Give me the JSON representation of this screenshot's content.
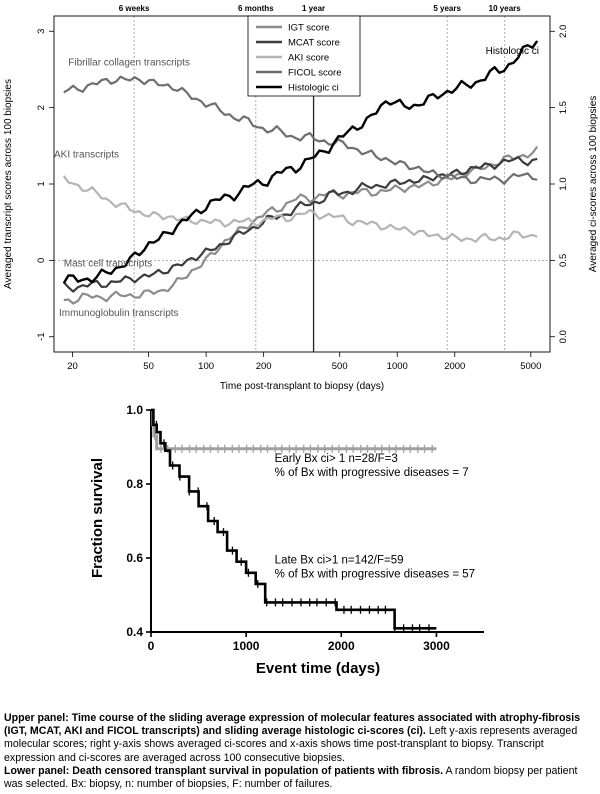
{
  "chart_data": [
    {
      "type": "line",
      "x_scale": "log",
      "xlabel": "Time post-transplant to biopsy (days)",
      "ylabel": "Averaged transcript scores across 100 biopsies",
      "y2label": "Averaged ci-scores across 100 biopsies",
      "x_ticks": [
        20,
        50,
        100,
        200,
        500,
        1000,
        2000,
        5000
      ],
      "y_ticks": [
        -1,
        0,
        1,
        2,
        3
      ],
      "y2_ticks": [
        "0.0",
        "0.5",
        "1.0",
        "1.5",
        "2.0"
      ],
      "xlim": [
        16,
        6300
      ],
      "ylim": [
        -1.2,
        3.2
      ],
      "y2lim": [
        -0.1,
        2.1
      ],
      "milestones": [
        {
          "label": "6 weeks",
          "x": 42
        },
        {
          "label": "6 months",
          "x": 182
        },
        {
          "label": "1 year",
          "x": 365
        },
        {
          "label": "5 years",
          "x": 1825
        },
        {
          "label": "10 years",
          "x": 3650
        }
      ],
      "zero_line": 0,
      "legend_position": "top-center",
      "series": [
        {
          "name": "IGT score",
          "color": "#8c8c8c",
          "width": 2.2,
          "axis": "left",
          "points": [
            [
              18,
              -0.52
            ],
            [
              25,
              -0.48
            ],
            [
              40,
              -0.46
            ],
            [
              60,
              -0.4
            ],
            [
              90,
              -0.1
            ],
            [
              120,
              0.2
            ],
            [
              160,
              0.45
            ],
            [
              220,
              0.65
            ],
            [
              300,
              0.8
            ],
            [
              400,
              0.85
            ],
            [
              550,
              0.88
            ],
            [
              800,
              0.9
            ],
            [
              1100,
              0.95
            ],
            [
              1500,
              1.0
            ],
            [
              2000,
              1.1
            ],
            [
              2700,
              1.2
            ],
            [
              3500,
              1.3
            ],
            [
              4500,
              1.38
            ],
            [
              5400,
              1.42
            ]
          ]
        },
        {
          "name": "MCAT score",
          "color": "#3c3c3c",
          "width": 2.2,
          "axis": "left",
          "points": [
            [
              18,
              -0.35
            ],
            [
              25,
              -0.33
            ],
            [
              40,
              -0.25
            ],
            [
              60,
              -0.15
            ],
            [
              90,
              0.05
            ],
            [
              130,
              0.25
            ],
            [
              180,
              0.45
            ],
            [
              250,
              0.6
            ],
            [
              330,
              0.72
            ],
            [
              450,
              0.85
            ],
            [
              650,
              0.95
            ],
            [
              900,
              1.0
            ],
            [
              1300,
              1.05
            ],
            [
              1800,
              1.12
            ],
            [
              2500,
              1.2
            ],
            [
              3500,
              1.28
            ],
            [
              4500,
              1.32
            ],
            [
              5400,
              1.3
            ]
          ]
        },
        {
          "name": "AKI score",
          "color": "#b4b4b4",
          "width": 2.2,
          "axis": "left",
          "points": [
            [
              18,
              1.05
            ],
            [
              22,
              0.98
            ],
            [
              30,
              0.8
            ],
            [
              45,
              0.62
            ],
            [
              70,
              0.55
            ],
            [
              100,
              0.5
            ],
            [
              150,
              0.5
            ],
            [
              200,
              0.52
            ],
            [
              280,
              0.58
            ],
            [
              380,
              0.62
            ],
            [
              500,
              0.55
            ],
            [
              700,
              0.48
            ],
            [
              1000,
              0.42
            ],
            [
              1400,
              0.35
            ],
            [
              1800,
              0.3
            ],
            [
              2500,
              0.28
            ],
            [
              3500,
              0.3
            ],
            [
              5400,
              0.35
            ]
          ]
        },
        {
          "name": "FICOL score",
          "color": "#6e6e6e",
          "width": 2.2,
          "axis": "left",
          "points": [
            [
              18,
              2.2
            ],
            [
              25,
              2.3
            ],
            [
              35,
              2.38
            ],
            [
              50,
              2.35
            ],
            [
              70,
              2.25
            ],
            [
              100,
              2.05
            ],
            [
              150,
              1.85
            ],
            [
              220,
              1.7
            ],
            [
              300,
              1.62
            ],
            [
              400,
              1.58
            ],
            [
              550,
              1.5
            ],
            [
              800,
              1.35
            ],
            [
              1100,
              1.25
            ],
            [
              1500,
              1.15
            ],
            [
              2000,
              1.08
            ],
            [
              2800,
              1.05
            ],
            [
              3800,
              1.08
            ],
            [
              5400,
              1.12
            ]
          ]
        },
        {
          "name": "Histologic ci",
          "color": "#000000",
          "width": 2.4,
          "axis": "right",
          "points": [
            [
              18,
              0.37
            ],
            [
              25,
              0.38
            ],
            [
              35,
              0.45
            ],
            [
              50,
              0.6
            ],
            [
              70,
              0.72
            ],
            [
              100,
              0.86
            ],
            [
              150,
              0.95
            ],
            [
              200,
              1.02
            ],
            [
              280,
              1.1
            ],
            [
              380,
              1.18
            ],
            [
              500,
              1.3
            ],
            [
              700,
              1.42
            ],
            [
              900,
              1.55
            ],
            [
              1200,
              1.5
            ],
            [
              1600,
              1.58
            ],
            [
              2000,
              1.62
            ],
            [
              2700,
              1.68
            ],
            [
              3500,
              1.75
            ],
            [
              4500,
              1.85
            ],
            [
              5400,
              1.95
            ]
          ]
        }
      ],
      "annotations": [
        {
          "text": "Fibrillar collagen transcripts",
          "x": 19,
          "y": 2.55
        },
        {
          "text": "AKI transcripts",
          "x": 16,
          "y": 1.35
        },
        {
          "text": "Mast cell transcripts",
          "x": 18,
          "y": -0.08
        },
        {
          "text": "Immunoglobulin transcripts",
          "x": 17,
          "y": -0.73
        },
        {
          "text": "Histologic ci",
          "x": 2900,
          "y": 2.7
        }
      ]
    },
    {
      "type": "line",
      "xlabel": "Event time (days)",
      "ylabel": "Fraction survival",
      "x_ticks": [
        "0",
        "1000",
        "2000",
        "3000"
      ],
      "y_ticks": [
        "0.4",
        "0.6",
        "0.8",
        "1.0"
      ],
      "xlim": [
        0,
        3500
      ],
      "ylim": [
        0.4,
        1.0
      ],
      "series": [
        {
          "name": "Early Bx ci> 1 n=28/F=3",
          "color": "#a0a0a0",
          "width": 3,
          "points": [
            [
              0,
              1.0
            ],
            [
              20,
              0.96
            ],
            [
              30,
              0.93
            ],
            [
              60,
              0.895
            ],
            [
              3000,
              0.895
            ]
          ]
        },
        {
          "name": "Late Bx ci>1 n=142/F=59",
          "color": "#000000",
          "width": 2.6,
          "points": [
            [
              0,
              1.0
            ],
            [
              25,
              0.96
            ],
            [
              60,
              0.94
            ],
            [
              100,
              0.91
            ],
            [
              150,
              0.89
            ],
            [
              200,
              0.85
            ],
            [
              300,
              0.82
            ],
            [
              400,
              0.78
            ],
            [
              500,
              0.74
            ],
            [
              600,
              0.7
            ],
            [
              700,
              0.67
            ],
            [
              800,
              0.62
            ],
            [
              900,
              0.59
            ],
            [
              1000,
              0.56
            ],
            [
              1100,
              0.53
            ],
            [
              1200,
              0.48
            ],
            [
              1700,
              0.48
            ],
            [
              1950,
              0.46
            ],
            [
              2500,
              0.46
            ],
            [
              2560,
              0.41
            ],
            [
              3000,
              0.41
            ]
          ]
        }
      ],
      "annotations": [
        {
          "line1": "Early Bx ci> 1 n=28/F=3",
          "line2": "% of Bx with progressive diseases = 7",
          "x": 1300,
          "y": 0.86
        },
        {
          "line1": "Late Bx ci>1 n=142/F=59",
          "line2": "% of Bx with progressive diseases = 57",
          "x": 1300,
          "y": 0.585
        }
      ]
    }
  ],
  "caption": {
    "upper_bold": "Upper panel: Time course of the sliding average expression of molecular features associated with atrophy-fibrosis (IGT, MCAT, AKI and FICOL transcripts) and sliding average histologic ci-scores (ci).",
    "upper_text": " Left y-axis represents averaged molecular scores; right y-axis shows averaged ci-scores and x-axis shows time post-transplant to biopsy. Transcript expression and ci-scores are averaged across 100 consecutive biopsies.",
    "lower_bold": "Lower panel: Death censored transplant survival in population of patients with fibrosis.",
    "lower_text": " A random biopsy per patient was selected. Bx: biopsy, n: number of biopsies, F: number of failures."
  }
}
